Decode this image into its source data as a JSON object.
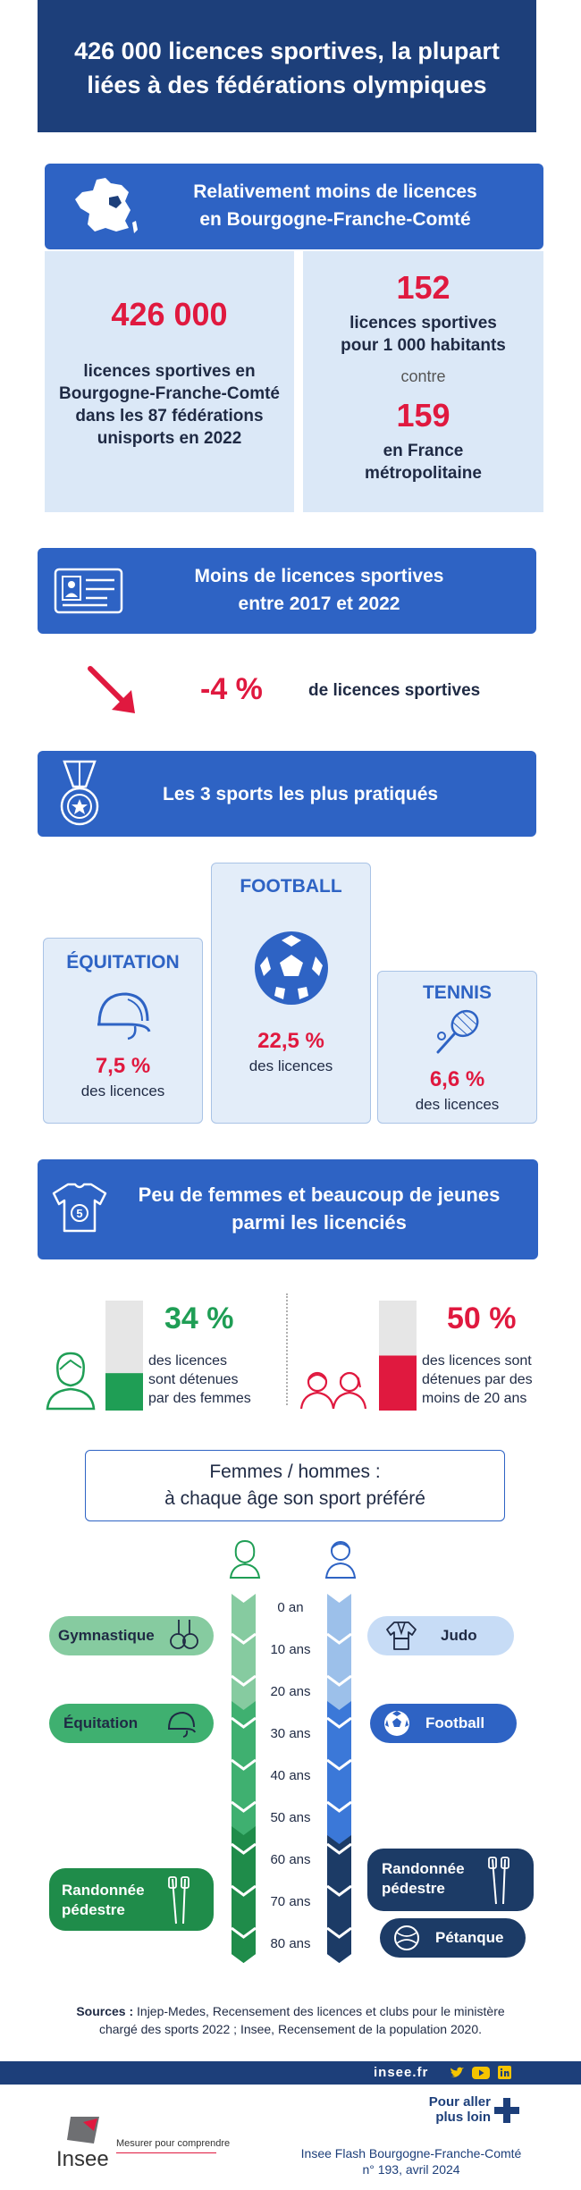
{
  "header": {
    "title_line1": "426 000 licences sportives, la plupart",
    "title_line2": "liées à des fédérations olympiques"
  },
  "section1": {
    "title_line1": "Relativement moins de licences",
    "title_line2": "en Bourgogne-Franche-Comté",
    "left_value": "426 000",
    "left_text_l1": "licences sportives en",
    "left_text_l2": "Bourgogne-Franche-Comté",
    "left_text_l3": "dans les 87 fédérations",
    "left_text_l4": "unisports en 2022",
    "right_value1": "152",
    "right_text1_l1": "licences sportives",
    "right_text1_l2": "pour 1 000 habitants",
    "contre": "contre",
    "right_value2": "159",
    "right_text2_l1": "en France",
    "right_text2_l2": "métropolitaine"
  },
  "section2": {
    "title_line1": "Moins de licences sportives",
    "title_line2": "entre 2017 et 2022",
    "value": "-4 %",
    "text": "de licences sportives"
  },
  "section3": {
    "title": "Les 3 sports les plus pratiqués",
    "sports": [
      {
        "name": "ÉQUITATION",
        "pct": "7,5 %",
        "unit": "des licences"
      },
      {
        "name": "FOOTBALL",
        "pct": "22,5 %",
        "unit": "des licences"
      },
      {
        "name": "TENNIS",
        "pct": "6,6 %",
        "unit": "des licences"
      }
    ]
  },
  "section4": {
    "title_line1": "Peu de femmes et beaucoup de jeunes",
    "title_line2": "parmi les licenciés",
    "women_pct": "34 %",
    "women_fraction": 0.34,
    "women_text_l1": "des licences",
    "women_text_l2": "sont détenues",
    "women_text_l3": "par des femmes",
    "young_pct": "50 %",
    "young_fraction": 0.5,
    "young_text_l1": "des licences sont",
    "young_text_l2": "détenues par des",
    "young_text_l3": "moins de 20 ans",
    "colors": {
      "green": "#1f9e55",
      "red": "#e0193f",
      "gray": "#e6e6e6"
    }
  },
  "section5": {
    "title_line1": "Femmes / hommes :",
    "title_line2": "à chaque âge son sport préféré",
    "ages": [
      "0 an",
      "10 ans",
      "20 ans",
      "30 ans",
      "40 ans",
      "50 ans",
      "60 ans",
      "70 ans",
      "80 ans"
    ],
    "women": [
      "Gymnastique",
      "Équitation",
      "Randonnée",
      "pédestre"
    ],
    "men": [
      "Judo",
      "Football",
      "Randonnée",
      "pédestre",
      "Pétanque"
    ]
  },
  "sources": {
    "label": "Sources :",
    "line1": " Injep-Medes, Recensement des licences et clubs pour le ministère",
    "line2": "chargé des sports 2022 ; Insee, Recensement de la population 2020."
  },
  "footer": {
    "site": "insee.fr",
    "go_further_l1": "Pour aller",
    "go_further_l2": "plus loin",
    "logo": "Insee",
    "tagline": "Mesurer pour comprendre",
    "pub_l1": "Insee Flash Bourgogne-Franche-Comté",
    "pub_l2": "n° 193, avril 2024"
  }
}
